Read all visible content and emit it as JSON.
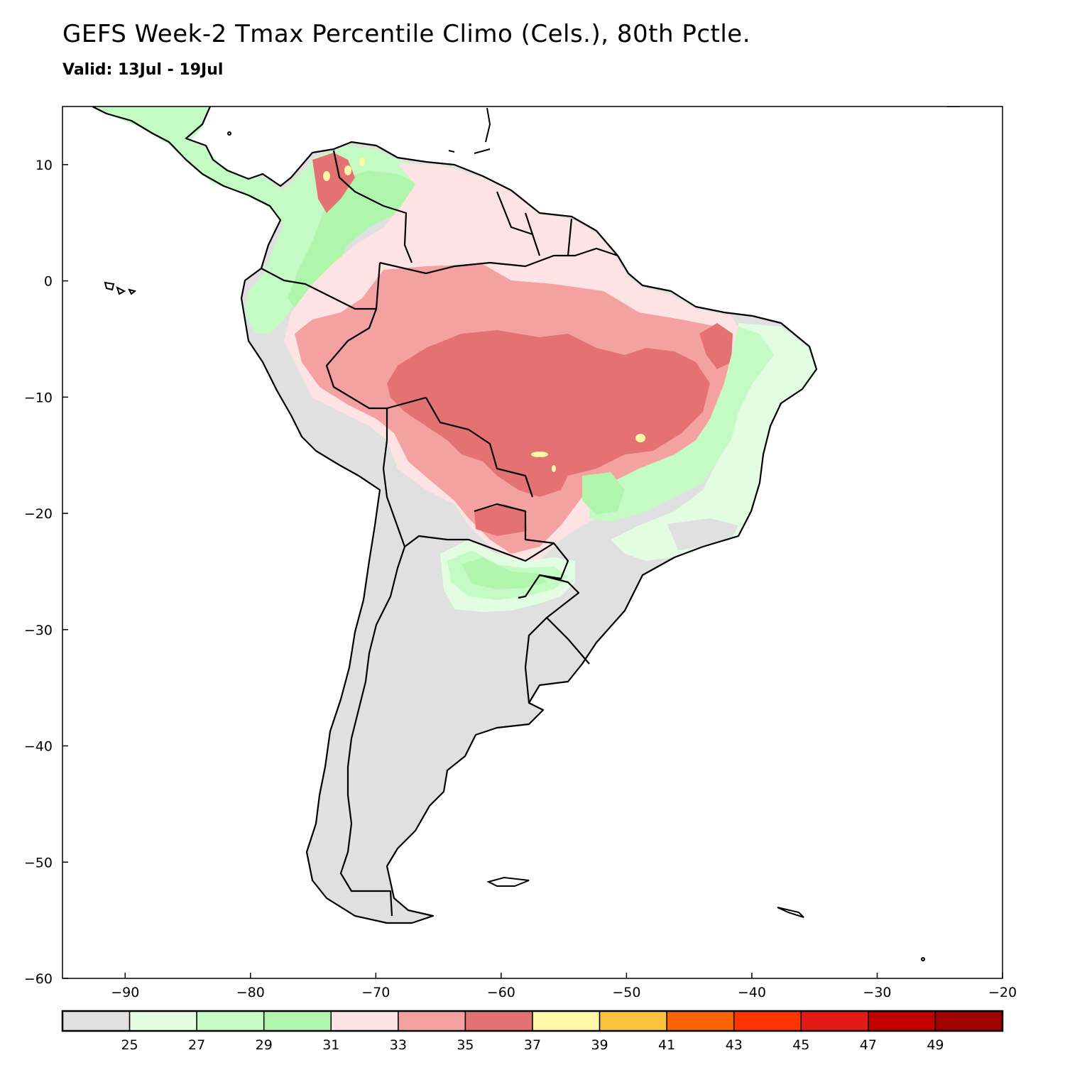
{
  "header": {
    "title": "GEFS Week-2 Tmax Percentile Climo (Cels.), 80th Pctle.",
    "subtitle": "Valid: 13Jul - 19Jul"
  },
  "map": {
    "lon_range": [
      -95,
      -20
    ],
    "lat_range": [
      -60,
      15
    ],
    "x_ticks": [
      {
        "value": -90,
        "label": "−90"
      },
      {
        "value": -80,
        "label": "−80"
      },
      {
        "value": -70,
        "label": "−70"
      },
      {
        "value": -60,
        "label": "−60"
      },
      {
        "value": -50,
        "label": "−50"
      },
      {
        "value": -40,
        "label": "−40"
      },
      {
        "value": -30,
        "label": "−30"
      },
      {
        "value": -20,
        "label": "−20"
      }
    ],
    "y_ticks": [
      {
        "value": 10,
        "label": "10"
      },
      {
        "value": 0,
        "label": "0"
      },
      {
        "value": -10,
        "label": "−10"
      },
      {
        "value": -20,
        "label": "−20"
      },
      {
        "value": -30,
        "label": "−30"
      },
      {
        "value": -40,
        "label": "−40"
      },
      {
        "value": -50,
        "label": "−50"
      },
      {
        "value": -60,
        "label": "−60"
      }
    ],
    "land_color": "#e0e0e0",
    "ocean_color": "#ffffff"
  },
  "colorbar": {
    "colors": [
      "#e0e0e0",
      "#e2fde2",
      "#c4fbc4",
      "#b0f5ac",
      "#fde3e3",
      "#f4a1a1",
      "#e47272",
      "#fdf9a7",
      "#fbc33c",
      "#fb6400",
      "#ff3500",
      "#e31b14",
      "#c10000",
      "#a00000"
    ],
    "labels": [
      "25",
      "27",
      "29",
      "31",
      "33",
      "35",
      "37",
      "39",
      "41",
      "43",
      "45",
      "47",
      "49"
    ]
  }
}
